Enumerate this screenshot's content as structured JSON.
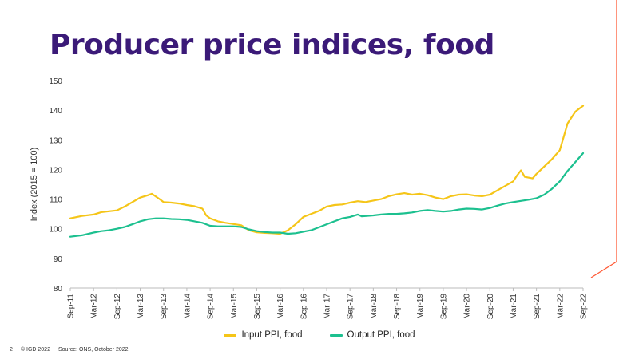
{
  "slide": {
    "title": "Producer price indices, food",
    "page_number": "2",
    "copyright": "© IGD 2022",
    "source": "Source: ONS, October 2022"
  },
  "colors": {
    "title": "#3b1a78",
    "input_series": "#f5c518",
    "output_series": "#1cc08f",
    "accent_line": "#ff5a36"
  },
  "chart_data": {
    "type": "line",
    "ylabel": "Index (2015 = 100)",
    "ylim": [
      80,
      150
    ],
    "yticks": [
      80,
      90,
      100,
      110,
      120,
      130,
      140,
      150
    ],
    "grid": false,
    "legend_position": "bottom",
    "x_start": "Sep-11",
    "x_end": "Sep-22",
    "x_tick_labels": [
      "Sep-11",
      "Mar-12",
      "Sep-12",
      "Mar-13",
      "Sep-13",
      "Mar-14",
      "Sep-14",
      "Mar-15",
      "Sep-15",
      "Mar-16",
      "Sep-16",
      "Mar-17",
      "Sep-17",
      "Mar-18",
      "Sep-18",
      "Mar-19",
      "Sep-19",
      "Mar-20",
      "Sep-20",
      "Mar-21",
      "Sep-21",
      "Mar-22",
      "Sep-22"
    ],
    "series": [
      {
        "name": "Input PPI, food",
        "points": [
          [
            "Sep-11",
            103.5
          ],
          [
            "Dec-11",
            104.3
          ],
          [
            "Mar-12",
            104.8
          ],
          [
            "May-12",
            105.6
          ],
          [
            "Jul-12",
            105.9
          ],
          [
            "Sep-12",
            106.2
          ],
          [
            "Nov-12",
            107.5
          ],
          [
            "Jan-13",
            109.0
          ],
          [
            "Mar-13",
            110.5
          ],
          [
            "May-13",
            111.3
          ],
          [
            "Jun-13",
            111.8
          ],
          [
            "Aug-13",
            110.0
          ],
          [
            "Sep-13",
            109.0
          ],
          [
            "Nov-13",
            108.8
          ],
          [
            "Jan-14",
            108.5
          ],
          [
            "Mar-14",
            108.0
          ],
          [
            "May-14",
            107.6
          ],
          [
            "Jul-14",
            106.8
          ],
          [
            "Aug-14",
            104.5
          ],
          [
            "Sep-14",
            103.5
          ],
          [
            "Nov-14",
            102.5
          ],
          [
            "Jan-15",
            102.0
          ],
          [
            "Mar-15",
            101.6
          ],
          [
            "May-15",
            101.2
          ],
          [
            "Jul-15",
            99.5
          ],
          [
            "Sep-15",
            98.8
          ],
          [
            "Nov-15",
            98.6
          ],
          [
            "Jan-16",
            98.5
          ],
          [
            "Mar-16",
            98.3
          ],
          [
            "May-16",
            99.5
          ],
          [
            "Jul-16",
            101.5
          ],
          [
            "Sep-16",
            104.0
          ],
          [
            "Nov-16",
            105.0
          ],
          [
            "Jan-17",
            106.0
          ],
          [
            "Mar-17",
            107.5
          ],
          [
            "May-17",
            108.0
          ],
          [
            "Jul-17",
            108.2
          ],
          [
            "Sep-17",
            108.8
          ],
          [
            "Nov-17",
            109.3
          ],
          [
            "Jan-18",
            109.0
          ],
          [
            "Mar-18",
            109.5
          ],
          [
            "May-18",
            110.0
          ],
          [
            "Jul-18",
            111.0
          ],
          [
            "Sep-18",
            111.6
          ],
          [
            "Nov-18",
            112.0
          ],
          [
            "Jan-19",
            111.5
          ],
          [
            "Mar-19",
            111.8
          ],
          [
            "May-19",
            111.3
          ],
          [
            "Jul-19",
            110.5
          ],
          [
            "Sep-19",
            110.0
          ],
          [
            "Nov-19",
            111.0
          ],
          [
            "Jan-20",
            111.5
          ],
          [
            "Mar-20",
            111.6
          ],
          [
            "May-20",
            111.2
          ],
          [
            "Jul-20",
            111.0
          ],
          [
            "Sep-20",
            111.5
          ],
          [
            "Nov-20",
            113.0
          ],
          [
            "Jan-21",
            114.5
          ],
          [
            "Mar-21",
            116.0
          ],
          [
            "Apr-21",
            118.0
          ],
          [
            "May-21",
            119.7
          ],
          [
            "Jun-21",
            117.5
          ],
          [
            "Aug-21",
            117.0
          ],
          [
            "Sep-21",
            118.5
          ],
          [
            "Nov-21",
            121.0
          ],
          [
            "Jan-22",
            123.5
          ],
          [
            "Mar-22",
            126.5
          ],
          [
            "Apr-22",
            131.0
          ],
          [
            "May-22",
            135.5
          ],
          [
            "Jun-22",
            137.5
          ],
          [
            "Jul-22",
            139.5
          ],
          [
            "Aug-22",
            140.5
          ],
          [
            "Sep-22",
            141.5
          ]
        ]
      },
      {
        "name": "Output PPI, food",
        "points": [
          [
            "Sep-11",
            97.3
          ],
          [
            "Dec-11",
            97.8
          ],
          [
            "Mar-12",
            98.7
          ],
          [
            "May-12",
            99.2
          ],
          [
            "Jul-12",
            99.5
          ],
          [
            "Sep-12",
            100.0
          ],
          [
            "Nov-12",
            100.6
          ],
          [
            "Jan-13",
            101.5
          ],
          [
            "Mar-13",
            102.5
          ],
          [
            "May-13",
            103.2
          ],
          [
            "Jul-13",
            103.5
          ],
          [
            "Sep-13",
            103.5
          ],
          [
            "Nov-13",
            103.3
          ],
          [
            "Jan-14",
            103.2
          ],
          [
            "Mar-14",
            103.0
          ],
          [
            "May-14",
            102.5
          ],
          [
            "Jul-14",
            102.0
          ],
          [
            "Sep-14",
            101.0
          ],
          [
            "Nov-14",
            100.8
          ],
          [
            "Jan-15",
            100.8
          ],
          [
            "Mar-15",
            100.8
          ],
          [
            "May-15",
            100.6
          ],
          [
            "Jul-15",
            99.8
          ],
          [
            "Sep-15",
            99.2
          ],
          [
            "Nov-15",
            98.9
          ],
          [
            "Jan-16",
            98.7
          ],
          [
            "Mar-16",
            98.7
          ],
          [
            "May-16",
            98.3
          ],
          [
            "Jul-16",
            98.5
          ],
          [
            "Sep-16",
            99.0
          ],
          [
            "Nov-16",
            99.5
          ],
          [
            "Jan-17",
            100.5
          ],
          [
            "Mar-17",
            101.5
          ],
          [
            "May-17",
            102.5
          ],
          [
            "Jul-17",
            103.5
          ],
          [
            "Sep-17",
            104.0
          ],
          [
            "Nov-17",
            104.8
          ],
          [
            "Dec-17",
            104.2
          ],
          [
            "Mar-18",
            104.5
          ],
          [
            "May-18",
            104.8
          ],
          [
            "Jul-18",
            105.0
          ],
          [
            "Sep-18",
            105.0
          ],
          [
            "Nov-18",
            105.2
          ],
          [
            "Jan-19",
            105.5
          ],
          [
            "Mar-19",
            106.0
          ],
          [
            "May-19",
            106.3
          ],
          [
            "Jul-19",
            106.0
          ],
          [
            "Sep-19",
            105.8
          ],
          [
            "Nov-19",
            106.0
          ],
          [
            "Jan-20",
            106.5
          ],
          [
            "Mar-20",
            106.8
          ],
          [
            "May-20",
            106.7
          ],
          [
            "Jul-20",
            106.5
          ],
          [
            "Sep-20",
            107.0
          ],
          [
            "Nov-20",
            107.8
          ],
          [
            "Jan-21",
            108.5
          ],
          [
            "Mar-21",
            109.0
          ],
          [
            "May-21",
            109.4
          ],
          [
            "Jul-21",
            109.8
          ],
          [
            "Sep-21",
            110.3
          ],
          [
            "Nov-21",
            111.5
          ],
          [
            "Jan-22",
            113.5
          ],
          [
            "Mar-22",
            116.0
          ],
          [
            "May-22",
            119.5
          ],
          [
            "Jul-22",
            122.5
          ],
          [
            "Aug-22",
            124.0
          ],
          [
            "Sep-22",
            125.5
          ]
        ]
      }
    ]
  }
}
